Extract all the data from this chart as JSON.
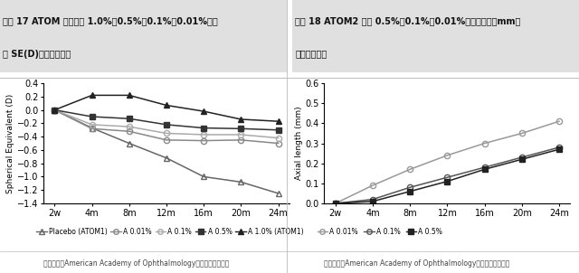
{
  "chart1": {
    "title_line1": "图表 17 ATOM 系列试验 1.0%、0.5%、0.1%、0.01%阿托",
    "title_line2": "品 SE(D)两年实验结果",
    "xlabel_ticks": [
      "2w",
      "4m",
      "8m",
      "12m",
      "16m",
      "20m",
      "24m"
    ],
    "ylabel": "Spherical Equivalent (D)",
    "ylim": [
      -1.4,
      0.4
    ],
    "yticks": [
      -1.4,
      -1.2,
      -1.0,
      -0.8,
      -0.6,
      -0.4,
      -0.2,
      0.0,
      0.2,
      0.4
    ],
    "series": [
      {
        "label": "Placebo (ATOM1)",
        "data": [
          0.0,
          -0.27,
          -0.5,
          -0.72,
          -1.0,
          -1.08,
          -1.25
        ],
        "marker": "^",
        "color": "#666666",
        "linestyle": "-",
        "fillstyle": "none"
      },
      {
        "label": "A 0.01%",
        "data": [
          0.0,
          -0.28,
          -0.32,
          -0.45,
          -0.46,
          -0.45,
          -0.5
        ],
        "marker": "o",
        "color": "#888888",
        "linestyle": "-",
        "fillstyle": "none"
      },
      {
        "label": "A 0.1%",
        "data": [
          0.0,
          -0.22,
          -0.25,
          -0.35,
          -0.37,
          -0.37,
          -0.42
        ],
        "marker": "o",
        "color": "#aaaaaa",
        "linestyle": "-",
        "fillstyle": "none"
      },
      {
        "label": "A 0.5%",
        "data": [
          0.0,
          -0.1,
          -0.13,
          -0.22,
          -0.27,
          -0.28,
          -0.3
        ],
        "marker": "s",
        "color": "#333333",
        "linestyle": "-",
        "fillstyle": "full"
      },
      {
        "label": "A 1.0% (ATOM1)",
        "data": [
          0.0,
          0.22,
          0.22,
          0.07,
          -0.02,
          -0.14,
          -0.17
        ],
        "marker": "^",
        "color": "#222222",
        "linestyle": "-",
        "fillstyle": "full"
      }
    ],
    "legend_labels": [
      "-△- Placebo (ATOM1)",
      "-O- A 0.01%",
      "-O- A 0.1%",
      "-●- A 0.5%",
      "-▲- A 1.0% (ATOM1)"
    ],
    "source": "资料来源：American Academy of Ophthalmology，华安证券研究所"
  },
  "chart2": {
    "title_line1": "图表 18 ATOM2 试验 0.5%、0.1%、0.01%阿托品轴长（mm）",
    "title_line2": "两年实验结果",
    "xlabel_ticks": [
      "2w",
      "4m",
      "8m",
      "12m",
      "16m",
      "20m",
      "24m"
    ],
    "ylabel": "Axial length (mm)",
    "ylim": [
      0.0,
      0.6
    ],
    "yticks": [
      0.0,
      0.1,
      0.2,
      0.3,
      0.4,
      0.5,
      0.6
    ],
    "series": [
      {
        "label": "A 0.01%",
        "data": [
          0.0,
          0.09,
          0.17,
          0.24,
          0.3,
          0.35,
          0.41
        ],
        "marker": "o",
        "color": "#999999",
        "linestyle": "-",
        "fillstyle": "none"
      },
      {
        "label": "A 0.1%",
        "data": [
          0.0,
          0.02,
          0.08,
          0.13,
          0.18,
          0.23,
          0.28
        ],
        "marker": "o",
        "color": "#555555",
        "linestyle": "-",
        "fillstyle": "none"
      },
      {
        "label": "A 0.5%",
        "data": [
          0.0,
          0.01,
          0.06,
          0.11,
          0.17,
          0.22,
          0.27
        ],
        "marker": "s",
        "color": "#222222",
        "linestyle": "-",
        "fillstyle": "full"
      }
    ],
    "source": "资料来源：American Academy of Ophthalmology，华安证券研究所"
  },
  "bg_color": "#ffffff",
  "title_bg_color": "#e0e0e0",
  "divider_color": "#bbbbbb",
  "source_color": "#444444"
}
